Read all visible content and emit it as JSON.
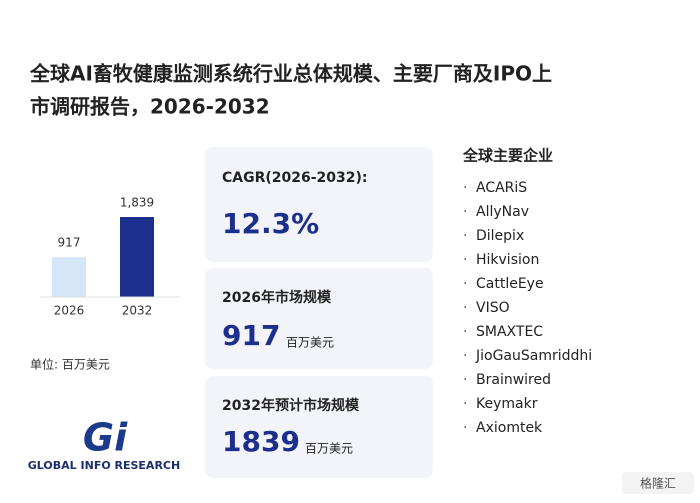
{
  "title_line1": "全球AI畜牧健康监测系统行业总体规模、主要厂商及IPO上",
  "title_line2": "市调研报告，2026-2032",
  "chart_data": {
    "type": "bar",
    "categories": [
      "2026",
      "2032"
    ],
    "values": [
      917,
      1839
    ],
    "value_labels": [
      "917",
      "1,839"
    ],
    "colors": [
      "#d5e6f8",
      "#1c2f8c"
    ],
    "unit_note": "单位: 百万美元"
  },
  "cards": [
    {
      "label": "CAGR(2026-2032):",
      "value": "12.3%"
    },
    {
      "label": "2026年市场规模",
      "unit": "百万美元"
    },
    {
      "label": "2032年预计市场规模",
      "unit": "百万美元"
    }
  ],
  "companies_title": "全球主要企业",
  "bullet": "·",
  "companies": [
    "ACARiS",
    "AllyNav",
    "Dilepix",
    "Hikvision",
    "CattleEye",
    "VISO",
    "SMAXTEC",
    "JioGauSamriddhi",
    "Brainwired",
    "Keymakr",
    "Axiomtek"
  ],
  "logo_text": "GLOBAL INFO RESEARCH",
  "logo_mark": "Gi",
  "source_badge": "格隆汇"
}
